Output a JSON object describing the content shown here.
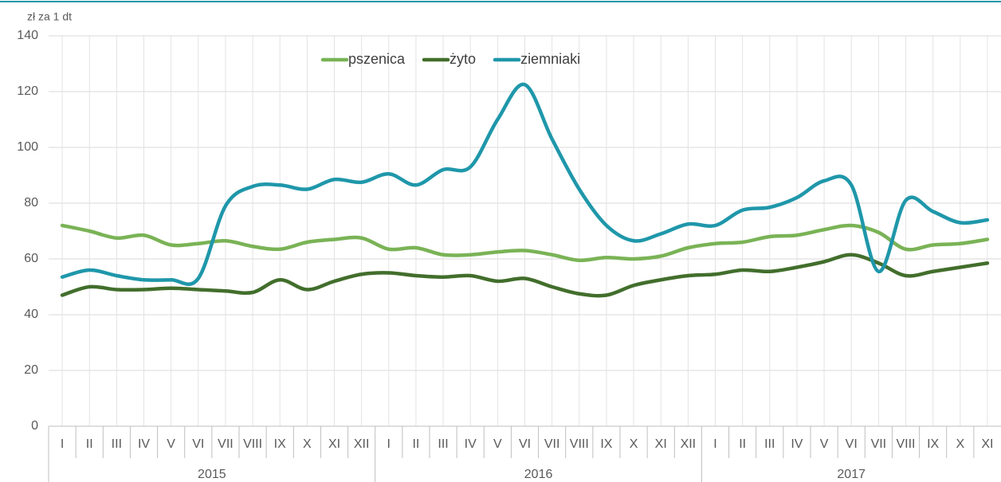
{
  "chart_data": {
    "type": "line",
    "y_axis_label": "zł za 1 dt",
    "categories": [
      "I",
      "II",
      "III",
      "IV",
      "V",
      "VI",
      "VII",
      "VIII",
      "IX",
      "X",
      "XI",
      "XII",
      "I",
      "II",
      "III",
      "IV",
      "V",
      "VI",
      "VII",
      "VIII",
      "IX",
      "X",
      "XI",
      "XII",
      "I",
      "II",
      "III",
      "IV",
      "V",
      "VI",
      "VII",
      "VIII",
      "IX",
      "X",
      "XI"
    ],
    "category_groups": [
      "2015",
      "2016",
      "2017"
    ],
    "ylim": [
      0,
      140
    ],
    "yticks": [
      0,
      20,
      40,
      60,
      80,
      100,
      120,
      140
    ],
    "grid": true,
    "legend": "top",
    "series": [
      {
        "name": "pszenica",
        "color": "#7ab356",
        "values": [
          72,
          70,
          67.5,
          68.5,
          65,
          65.5,
          66.5,
          64.5,
          63.5,
          66,
          67,
          67.5,
          63.5,
          64,
          61.5,
          61.5,
          62.5,
          63,
          61.5,
          59.5,
          60.5,
          60,
          61,
          64,
          65.5,
          66,
          68,
          68.5,
          70.5,
          72,
          69.5,
          63.5,
          65,
          65.5,
          67
        ]
      },
      {
        "name": "żyto",
        "color": "#426e2c",
        "values": [
          47,
          50,
          49,
          49,
          49.5,
          49,
          48.5,
          48,
          52.5,
          49,
          52,
          54.5,
          55,
          54,
          53.5,
          54,
          52,
          53,
          50,
          47.5,
          47,
          50.5,
          52.5,
          54,
          54.5,
          56,
          55.5,
          57,
          59,
          61.5,
          58.5,
          54,
          55.5,
          57,
          58.5
        ]
      },
      {
        "name": "ziemniaki",
        "color": "#1f97aa",
        "values": [
          53.5,
          56,
          54,
          52.5,
          52.5,
          53,
          79,
          86,
          86.5,
          85,
          88.5,
          87.5,
          90.5,
          86.5,
          92,
          93,
          110,
          122.5,
          103,
          85,
          72,
          66.5,
          69,
          72.5,
          72,
          77.5,
          78.5,
          82,
          88,
          86.5,
          55.5,
          81,
          77,
          73,
          74
        ]
      }
    ]
  }
}
